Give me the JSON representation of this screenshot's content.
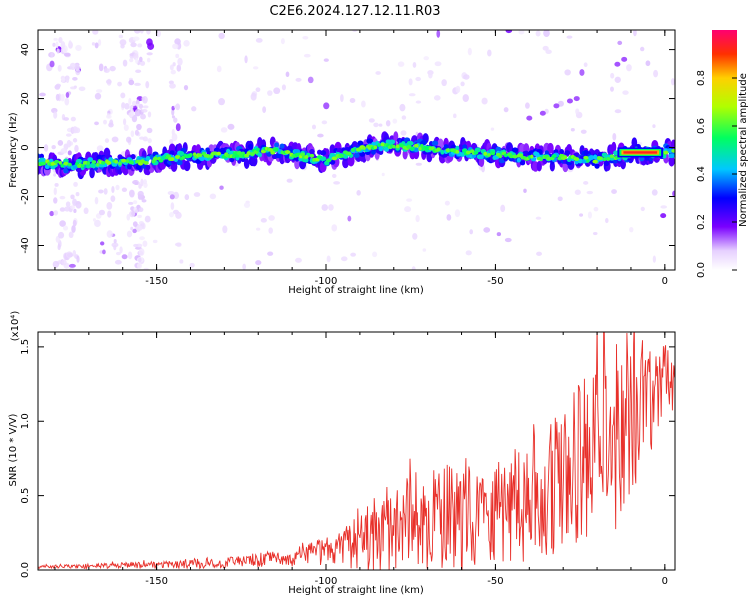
{
  "title": "C2E6.2024.127.12.11.R03",
  "chart_data": [
    {
      "type": "heatmap",
      "xlabel": "Height of straight line (km)",
      "ylabel": "Frequency (Hz)",
      "xlim": [
        -185,
        3
      ],
      "ylim": [
        -50,
        48
      ],
      "xticks": [
        -150,
        -100,
        -50,
        0
      ],
      "yticks": [
        -40,
        -20,
        0,
        20,
        40
      ],
      "colorbar": {
        "label": "Normalized spectral amplitude",
        "range": [
          0,
          1
        ],
        "ticks": [
          "0.0",
          "0.2",
          "0.4",
          "0.6",
          "0.8"
        ]
      },
      "ridge": {
        "x": [
          -185,
          -175,
          -165,
          -155,
          -145,
          -135,
          -125,
          -118,
          -112,
          -105,
          -100,
          -95,
          -88,
          -80,
          -72,
          -65,
          -58,
          -50,
          -40,
          -30,
          -20,
          -12,
          -10,
          -5,
          0,
          2
        ],
        "y": [
          -6,
          -7,
          -6,
          -6,
          -4,
          -3,
          -3,
          -1,
          -2,
          -4,
          -5,
          -3,
          0,
          1,
          0,
          -1,
          -2,
          -3,
          -4,
          -4,
          -5,
          -3,
          -2,
          -2,
          -2,
          -2
        ]
      }
    },
    {
      "type": "line",
      "xlabel": "Height of straight line (km)",
      "ylabel": "SNR (10 * V/V)",
      "yexponent": "(x10⁴)",
      "xlim": [
        -185,
        3
      ],
      "ylim": [
        0,
        1.6
      ],
      "xticks": [
        -150,
        -100,
        -50,
        0
      ],
      "yticks": [
        "0.0",
        "0.5",
        "1.0",
        "1.5"
      ],
      "color": "#e8302a",
      "envelope": {
        "x": [
          -185,
          -160,
          -130,
          -110,
          -95,
          -85,
          -75,
          -65,
          -55,
          -45,
          -35,
          -25,
          -15,
          -5,
          3
        ],
        "mean": [
          0.02,
          0.03,
          0.05,
          0.08,
          0.15,
          0.22,
          0.3,
          0.35,
          0.4,
          0.45,
          0.5,
          0.7,
          0.9,
          1.15,
          1.3
        ],
        "amp": [
          0.01,
          0.02,
          0.04,
          0.06,
          0.12,
          0.3,
          0.35,
          0.35,
          0.4,
          0.4,
          0.45,
          0.6,
          0.65,
          0.4,
          0.2
        ]
      }
    }
  ]
}
